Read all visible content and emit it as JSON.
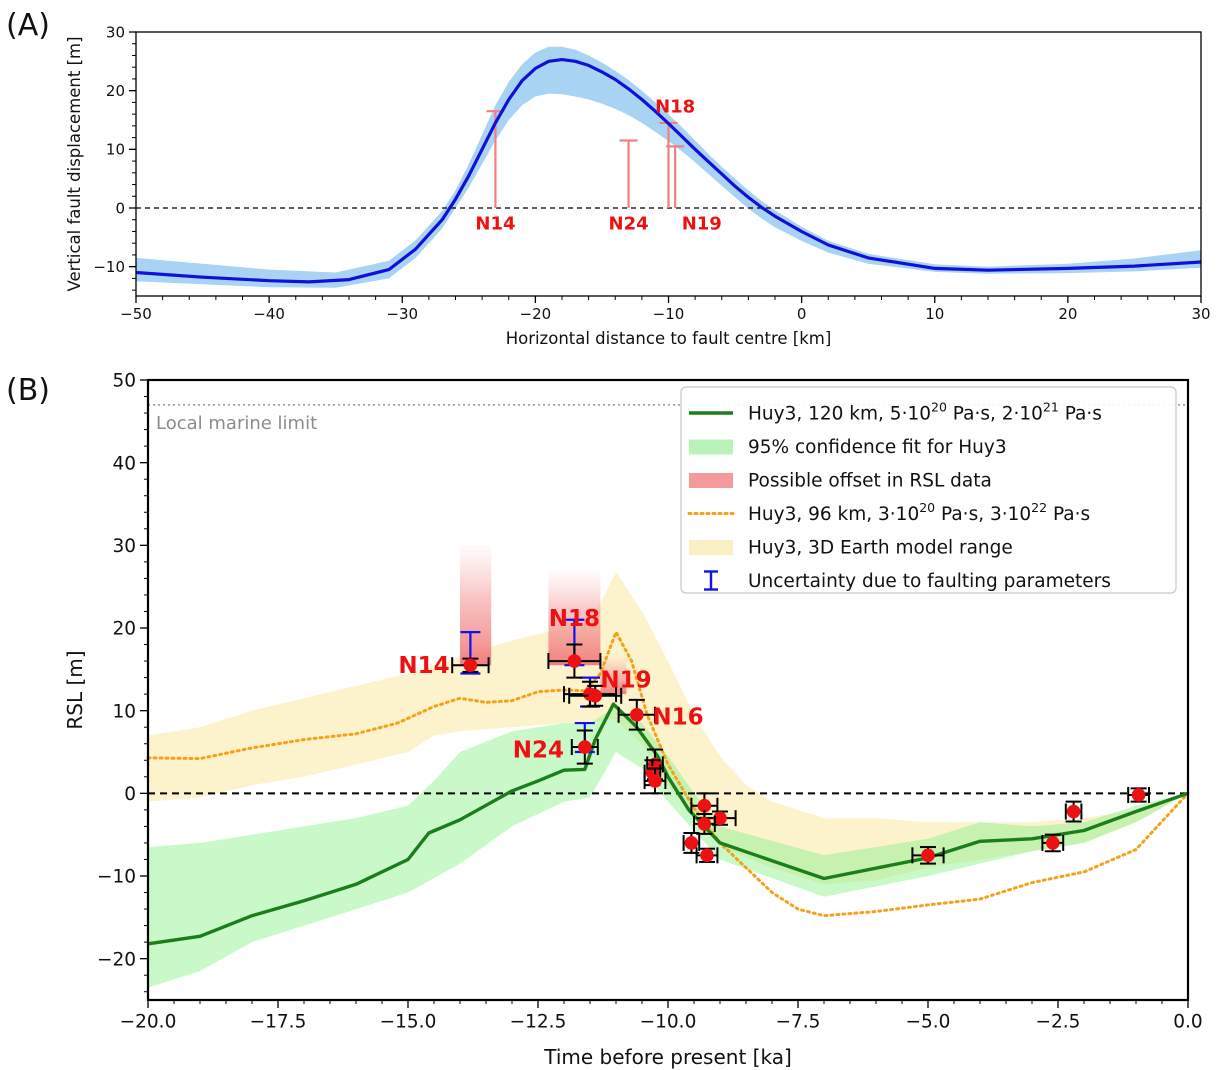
{
  "chart_data": [
    {
      "panel_label": "(A)",
      "type": "line",
      "xlabel": "Horizontal distance to fault centre [km]",
      "ylabel": "Vertical fault displacement [m]",
      "xlim": [
        -50,
        30
      ],
      "ylim": [
        -15,
        30
      ],
      "xticks": [
        -50,
        -40,
        -30,
        -20,
        -10,
        0,
        10,
        20,
        30
      ],
      "yticks": [
        -10,
        0,
        10,
        20,
        30
      ],
      "grid": false,
      "zero_line": true,
      "colors": {
        "line": "#1010d8",
        "band": "#a9d3f3",
        "site": "#f08080",
        "site_label": "#ee1111"
      },
      "series": [
        {
          "role": "mean",
          "x": [
            -50,
            -45,
            -40,
            -37,
            -34,
            -31,
            -29,
            -27,
            -26,
            -25,
            -24,
            -23,
            -22,
            -21,
            -20,
            -19,
            -18,
            -17,
            -16,
            -15,
            -14,
            -13,
            -12,
            -11,
            -10,
            -9,
            -8,
            -7,
            -6,
            -5,
            -4,
            -3,
            -2,
            0,
            2,
            5,
            10,
            14,
            20,
            25,
            30
          ],
          "y": [
            -11,
            -11.8,
            -12.4,
            -12.6,
            -12.2,
            -10.5,
            -7,
            -2,
            1.5,
            5.5,
            10,
            14.5,
            18.5,
            21.7,
            23.8,
            25,
            25.3,
            25,
            24.3,
            23.2,
            21.9,
            20.3,
            18.5,
            16.5,
            14.4,
            12.2,
            10,
            7.9,
            5.8,
            3.7,
            1.8,
            0.1,
            -1.4,
            -4,
            -6.3,
            -8.5,
            -10.3,
            -10.6,
            -10.3,
            -9.9,
            -9.2
          ]
        },
        {
          "role": "band_upper",
          "x": [
            -50,
            -45,
            -40,
            -35,
            -31,
            -29,
            -27,
            -26,
            -25,
            -24,
            -23,
            -22,
            -21,
            -20,
            -19,
            -18,
            -17,
            -16,
            -15,
            -14,
            -13,
            -12,
            -11,
            -10,
            -9,
            -8,
            -7,
            -6,
            -5,
            -4,
            -3,
            -2,
            0,
            2,
            5,
            10,
            14,
            20,
            25,
            30
          ],
          "y": [
            -8.5,
            -9.5,
            -10.5,
            -11,
            -9,
            -5.5,
            -0.5,
            3,
            7.5,
            12.5,
            17.5,
            21.5,
            24.5,
            26.5,
            27.5,
            27.5,
            27,
            26,
            24.8,
            23.4,
            21.8,
            20,
            18,
            16,
            13.8,
            11.5,
            9.2,
            7,
            5,
            3,
            1.2,
            -0.4,
            -3.2,
            -5.6,
            -7.8,
            -9.6,
            -10,
            -9.5,
            -8.6,
            -7.2
          ]
        },
        {
          "role": "band_lower",
          "x": [
            -50,
            -45,
            -40,
            -35,
            -31,
            -29,
            -27,
            -26,
            -25,
            -24,
            -23,
            -22,
            -21,
            -20,
            -19,
            -18,
            -17,
            -16,
            -15,
            -14,
            -13,
            -12,
            -11,
            -10,
            -9,
            -8,
            -7,
            -6,
            -5,
            -4,
            -3,
            -2,
            0,
            2,
            5,
            10,
            14,
            20,
            25,
            30
          ],
          "y": [
            -12.5,
            -13,
            -13.5,
            -13.6,
            -12,
            -8.5,
            -3.5,
            0,
            3.5,
            7.5,
            11.5,
            15,
            17.5,
            19,
            19.5,
            19.4,
            19,
            18.5,
            17.8,
            16.9,
            15.8,
            14.5,
            13,
            11.4,
            9.7,
            7.8,
            5.8,
            3.8,
            1.8,
            -0.1,
            -1.8,
            -3.3,
            -5.6,
            -7.6,
            -9.5,
            -10.9,
            -11.2,
            -11.1,
            -10.8,
            -10.2
          ]
        }
      ],
      "sites": [
        {
          "label": "N14",
          "x": -23,
          "ymin": 0,
          "ymax": 16.5,
          "label_x": -23,
          "label_y": -2.5
        },
        {
          "label": "N24",
          "x": -13,
          "ymin": 0,
          "ymax": 11.5,
          "label_x": -13,
          "label_y": -2.5
        },
        {
          "label": "N18",
          "x": -10,
          "ymin": 0,
          "ymax": 14.5,
          "label_x": -9.5,
          "label_y": 17.5
        },
        {
          "label": "N19",
          "x": -9.5,
          "ymin": 0,
          "ymax": 10.5,
          "label_x": -7.5,
          "label_y": -2.5
        }
      ]
    },
    {
      "panel_label": "(B)",
      "type": "line",
      "xlabel": "Time before present [ka]",
      "ylabel": "RSL [m]",
      "xlim": [
        -20,
        0
      ],
      "ylim": [
        -25,
        50
      ],
      "xticks": [
        -20.0,
        -17.5,
        -15.0,
        -12.5,
        -10.0,
        -7.5,
        -5.0,
        -2.5,
        0.0
      ],
      "xtick_labels": [
        "−20.0",
        "−17.5",
        "−15.0",
        "−12.5",
        "−10.0",
        "−7.5",
        "−5.0",
        "−2.5",
        "0.0"
      ],
      "yticks": [
        -20,
        -10,
        0,
        10,
        20,
        30,
        40,
        50
      ],
      "grid": false,
      "zero_line": true,
      "marine_limit": {
        "y": 47,
        "label": "Local marine limit"
      },
      "legend_position": "top-right",
      "legend": [
        {
          "text": "Huy3, 120 km, 5·10",
          "sup1": "20",
          "mid": " Pa·s, 2·10",
          "sup2": "21",
          "tail": " Pa·s",
          "kind": "line",
          "color": "#1a7f1a"
        },
        {
          "text": "95% confidence fit for Huy3",
          "kind": "patch",
          "color": "#b9f3b9"
        },
        {
          "text": "Possible offset in RSL data",
          "kind": "patch",
          "color": "#f59a9a"
        },
        {
          "text": "Huy3, 96 km, 3·10",
          "sup1": "20",
          "mid": " Pa·s, 3·10",
          "sup2": "22",
          "tail": " Pa·s",
          "kind": "dotted",
          "color": "#f5a21b"
        },
        {
          "text": "Huy3, 3D Earth model range",
          "kind": "patch",
          "color": "#fbefc4"
        },
        {
          "text": "Uncertainty due to faulting parameters",
          "kind": "ibar",
          "color": "#1111ee"
        }
      ],
      "series": [
        {
          "role": "green_line",
          "x": [
            -20,
            -19,
            -18,
            -17,
            -16,
            -15,
            -14.6,
            -14,
            -13,
            -12.5,
            -12,
            -11.6,
            -11.4,
            -11.05,
            -10.6,
            -10.2,
            -10,
            -9.6,
            -9,
            -7,
            -5,
            -4,
            -3,
            -2,
            -1,
            0
          ],
          "y": [
            -18.2,
            -17.3,
            -14.8,
            -13,
            -11,
            -8,
            -4.8,
            -3.2,
            0.3,
            1.5,
            2.8,
            2.9,
            6.5,
            10.8,
            8,
            4.5,
            2,
            -2,
            -6,
            -10.3,
            -7.8,
            -5.8,
            -5.5,
            -4.5,
            -2.2,
            0
          ]
        },
        {
          "role": "green_band_upper",
          "x": [
            -20,
            -19,
            -18,
            -17,
            -16,
            -15,
            -14.5,
            -14,
            -13,
            -12,
            -11.5,
            -11,
            -10.5,
            -10,
            -9.5,
            -9,
            -7,
            -5,
            -4,
            -3,
            -2,
            -1,
            0
          ],
          "y": [
            -6.5,
            -6,
            -5,
            -4,
            -3,
            -1.5,
            1.5,
            5,
            7.5,
            8.5,
            8.5,
            10.5,
            8.5,
            4.5,
            0,
            -4,
            -7.5,
            -5.5,
            -3.5,
            -4,
            -3.5,
            -1.5,
            0
          ]
        },
        {
          "role": "green_band_lower",
          "x": [
            -20,
            -19,
            -18,
            -17,
            -16,
            -15,
            -14,
            -13,
            -12,
            -11.5,
            -11,
            -10.5,
            -10,
            -9.5,
            -9,
            -7,
            -5,
            -4,
            -3,
            -2,
            -1,
            0
          ],
          "y": [
            -23.5,
            -21.5,
            -18,
            -16,
            -14,
            -12,
            -8.5,
            -4,
            -1,
            -0.5,
            5,
            3,
            -1,
            -4.5,
            -8,
            -12.5,
            -10,
            -8.5,
            -7,
            -6,
            -3.5,
            0
          ]
        },
        {
          "role": "yellow_band_upper",
          "x": [
            -20,
            -19,
            -18,
            -17,
            -16,
            -15,
            -14,
            -13,
            -12,
            -11.5,
            -11,
            -10.5,
            -10,
            -9.5,
            -9,
            -8.5,
            -8,
            -7.5,
            -7,
            -6,
            -5,
            -4,
            -3,
            -2,
            -1,
            0
          ],
          "y": [
            7,
            8,
            10,
            11.5,
            13,
            14.5,
            16.5,
            18.5,
            20,
            20.5,
            26.8,
            22,
            16,
            9.5,
            4.5,
            1,
            -1,
            -2,
            -3,
            -3,
            -3.5,
            -3.5,
            -3.5,
            -3,
            -2,
            0
          ]
        },
        {
          "role": "yellow_band_lower",
          "x": [
            -20,
            -19,
            -18,
            -17,
            -16,
            -15,
            -14.5,
            -14,
            -13,
            -12,
            -11.5,
            -11.05,
            -10.5,
            -10,
            -9.5,
            -9,
            -8,
            -7,
            -6,
            -5,
            -4,
            -3,
            -2,
            -1,
            0
          ],
          "y": [
            -1,
            -0.5,
            1,
            2,
            3.5,
            5,
            7,
            7.5,
            8,
            8.5,
            8.5,
            9,
            6,
            1,
            -3,
            -6.5,
            -9,
            -11,
            -10.5,
            -9,
            -8,
            -7,
            -6,
            -3.5,
            0
          ]
        },
        {
          "role": "orange_dotted",
          "x": [
            -20,
            -19,
            -18,
            -17,
            -16,
            -15.2,
            -14.5,
            -14,
            -13.5,
            -13,
            -12.5,
            -12,
            -11.6,
            -11.3,
            -11,
            -10.7,
            -10.4,
            -10,
            -9.5,
            -9,
            -8.5,
            -8,
            -7.5,
            -7,
            -6,
            -5,
            -4,
            -3,
            -2,
            -1,
            0
          ],
          "y": [
            4.3,
            4.2,
            5.5,
            6.5,
            7.2,
            8.5,
            10.5,
            11.5,
            11,
            11.2,
            12.3,
            12.5,
            12.4,
            14.5,
            19.5,
            16,
            9.5,
            3.5,
            -1.8,
            -6,
            -9,
            -12,
            -14,
            -14.8,
            -14.3,
            -13.5,
            -12.8,
            -10.8,
            -9.5,
            -6.8,
            0
          ]
        }
      ],
      "offsets": [
        {
          "x0": -14.0,
          "x1": -13.4,
          "y0": 15.5,
          "y1": 30
        },
        {
          "x0": -12.3,
          "x1": -11.3,
          "y0": 15.5,
          "y1": 27
        },
        {
          "x0": -11.3,
          "x1": -10.8,
          "y0": 12,
          "y1": 16.5
        }
      ],
      "points": [
        {
          "x": -13.8,
          "y": 15.5,
          "xerr": 0.35,
          "yerr": 0.8,
          "fault": [
            14.5,
            19.5
          ]
        },
        {
          "x": -11.8,
          "y": 16.0,
          "xerr": 0.5,
          "yerr": 2.0,
          "fault": [
            15.5,
            21
          ]
        },
        {
          "x": -11.5,
          "y": 12.0,
          "xerr": 0.5,
          "yerr": 1.5,
          "fault": [
            10.5,
            14
          ]
        },
        {
          "x": -11.6,
          "y": 5.6,
          "xerr": 0.25,
          "yerr": 2.0,
          "fault": [
            5,
            8.5
          ]
        },
        {
          "x": -11.4,
          "y": 11.8,
          "xerr": 0.5,
          "yerr": 1.2,
          "fault": null
        },
        {
          "x": -10.6,
          "y": 9.5,
          "xerr": 0.35,
          "yerr": 1.8,
          "fault": null
        },
        {
          "x": -10.25,
          "y": 3.5,
          "xerr": 0.15,
          "yerr": 1.8,
          "fault": null
        },
        {
          "x": -10.3,
          "y": 2.5,
          "xerr": 0.15,
          "yerr": 1.5,
          "fault": null
        },
        {
          "x": -10.25,
          "y": 1.5,
          "xerr": 0.2,
          "yerr": 1.5,
          "fault": null
        },
        {
          "x": -9.3,
          "y": -1.5,
          "xerr": 0.25,
          "yerr": 1.5,
          "fault": null
        },
        {
          "x": -9.0,
          "y": -3.0,
          "xerr": 0.3,
          "yerr": 0.8,
          "fault": null
        },
        {
          "x": -9.3,
          "y": -3.7,
          "xerr": 0.2,
          "yerr": 1.2,
          "fault": null
        },
        {
          "x": -9.55,
          "y": -6.0,
          "xerr": 0.15,
          "yerr": 1.2,
          "fault": null
        },
        {
          "x": -9.25,
          "y": -7.5,
          "xerr": 0.2,
          "yerr": 0.8,
          "fault": null
        },
        {
          "x": -5.0,
          "y": -7.5,
          "xerr": 0.3,
          "yerr": 1.0,
          "fault": null
        },
        {
          "x": -2.6,
          "y": -6.0,
          "xerr": 0.2,
          "yerr": 1.0,
          "fault": null
        },
        {
          "x": -2.2,
          "y": -2.2,
          "xerr": 0.15,
          "yerr": 1.2,
          "fault": null
        },
        {
          "x": -0.95,
          "y": -0.2,
          "xerr": 0.2,
          "yerr": 0.8,
          "fault": null
        }
      ],
      "site_labels": [
        {
          "label": "N14",
          "x": -14.2,
          "y": 15.5,
          "anchor": "end"
        },
        {
          "label": "N18",
          "x": -11.8,
          "y": 21.2,
          "anchor": "middle"
        },
        {
          "label": "N19",
          "x": -11.3,
          "y": 13.8,
          "anchor": "start"
        },
        {
          "label": "N16",
          "x": -10.3,
          "y": 9.3,
          "anchor": "start"
        },
        {
          "label": "N24",
          "x": -12.0,
          "y": 5.3,
          "anchor": "end"
        }
      ]
    }
  ]
}
